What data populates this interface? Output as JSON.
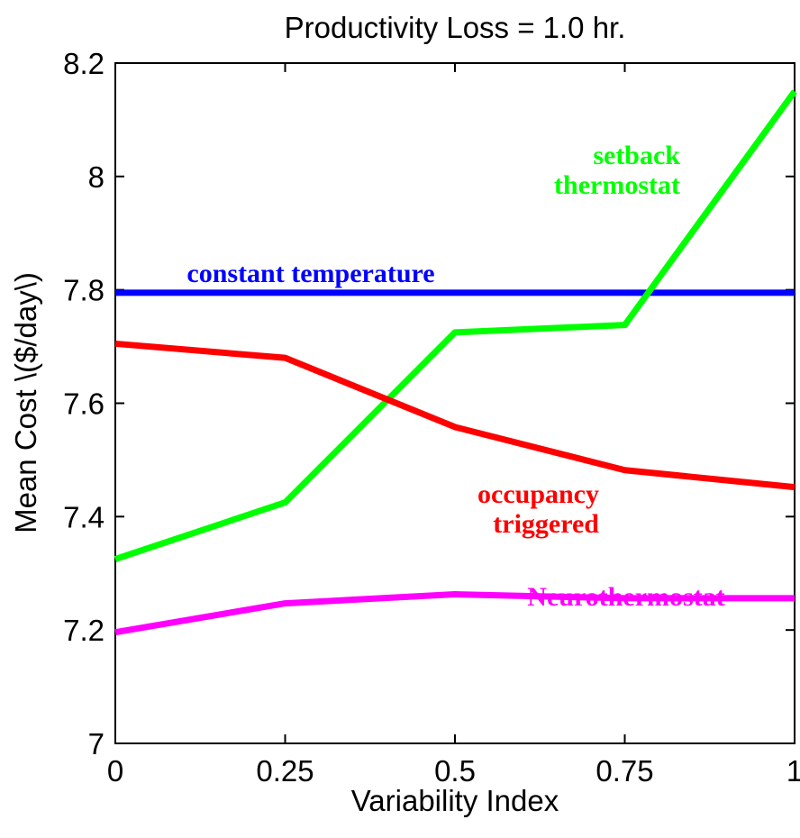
{
  "chart_data": {
    "type": "line",
    "title": "Productivity Loss = 1.0 hr.",
    "xlabel": "Variability Index",
    "ylabel": "Mean Cost \\($/day\\)",
    "x": [
      0,
      0.25,
      0.5,
      0.75,
      1
    ],
    "x_tick_labels": [
      "0",
      "0.25",
      "0.5",
      "0.75",
      "1"
    ],
    "y_ticks": [
      7,
      7.2,
      7.4,
      7.6,
      7.8,
      8,
      8.2
    ],
    "y_tick_labels": [
      "7",
      "7.2",
      "7.4",
      "7.6",
      "7.8",
      "8",
      "8.2"
    ],
    "xlim": [
      0,
      1
    ],
    "ylim": [
      7,
      8.2
    ],
    "grid": false,
    "series": [
      {
        "id": "constant",
        "label_lines": [
          "constant temperature"
        ],
        "color": "#0000ff",
        "values": [
          7.795,
          7.795,
          7.795,
          7.795,
          7.795
        ]
      },
      {
        "id": "setback",
        "label_lines": [
          "setback",
          "thermostat"
        ],
        "color": "#00ff00",
        "values": [
          7.325,
          7.425,
          7.725,
          7.738,
          8.15
        ]
      },
      {
        "id": "occupancy",
        "label_lines": [
          "occupancy",
          "triggered"
        ],
        "color": "#ff0000",
        "values": [
          7.705,
          7.68,
          7.558,
          7.482,
          7.452
        ]
      },
      {
        "id": "neuro",
        "label_lines": [
          "Neurothermostat"
        ],
        "color": "#ff00ff",
        "values": [
          7.196,
          7.247,
          7.263,
          7.256,
          7.256
        ]
      }
    ]
  }
}
